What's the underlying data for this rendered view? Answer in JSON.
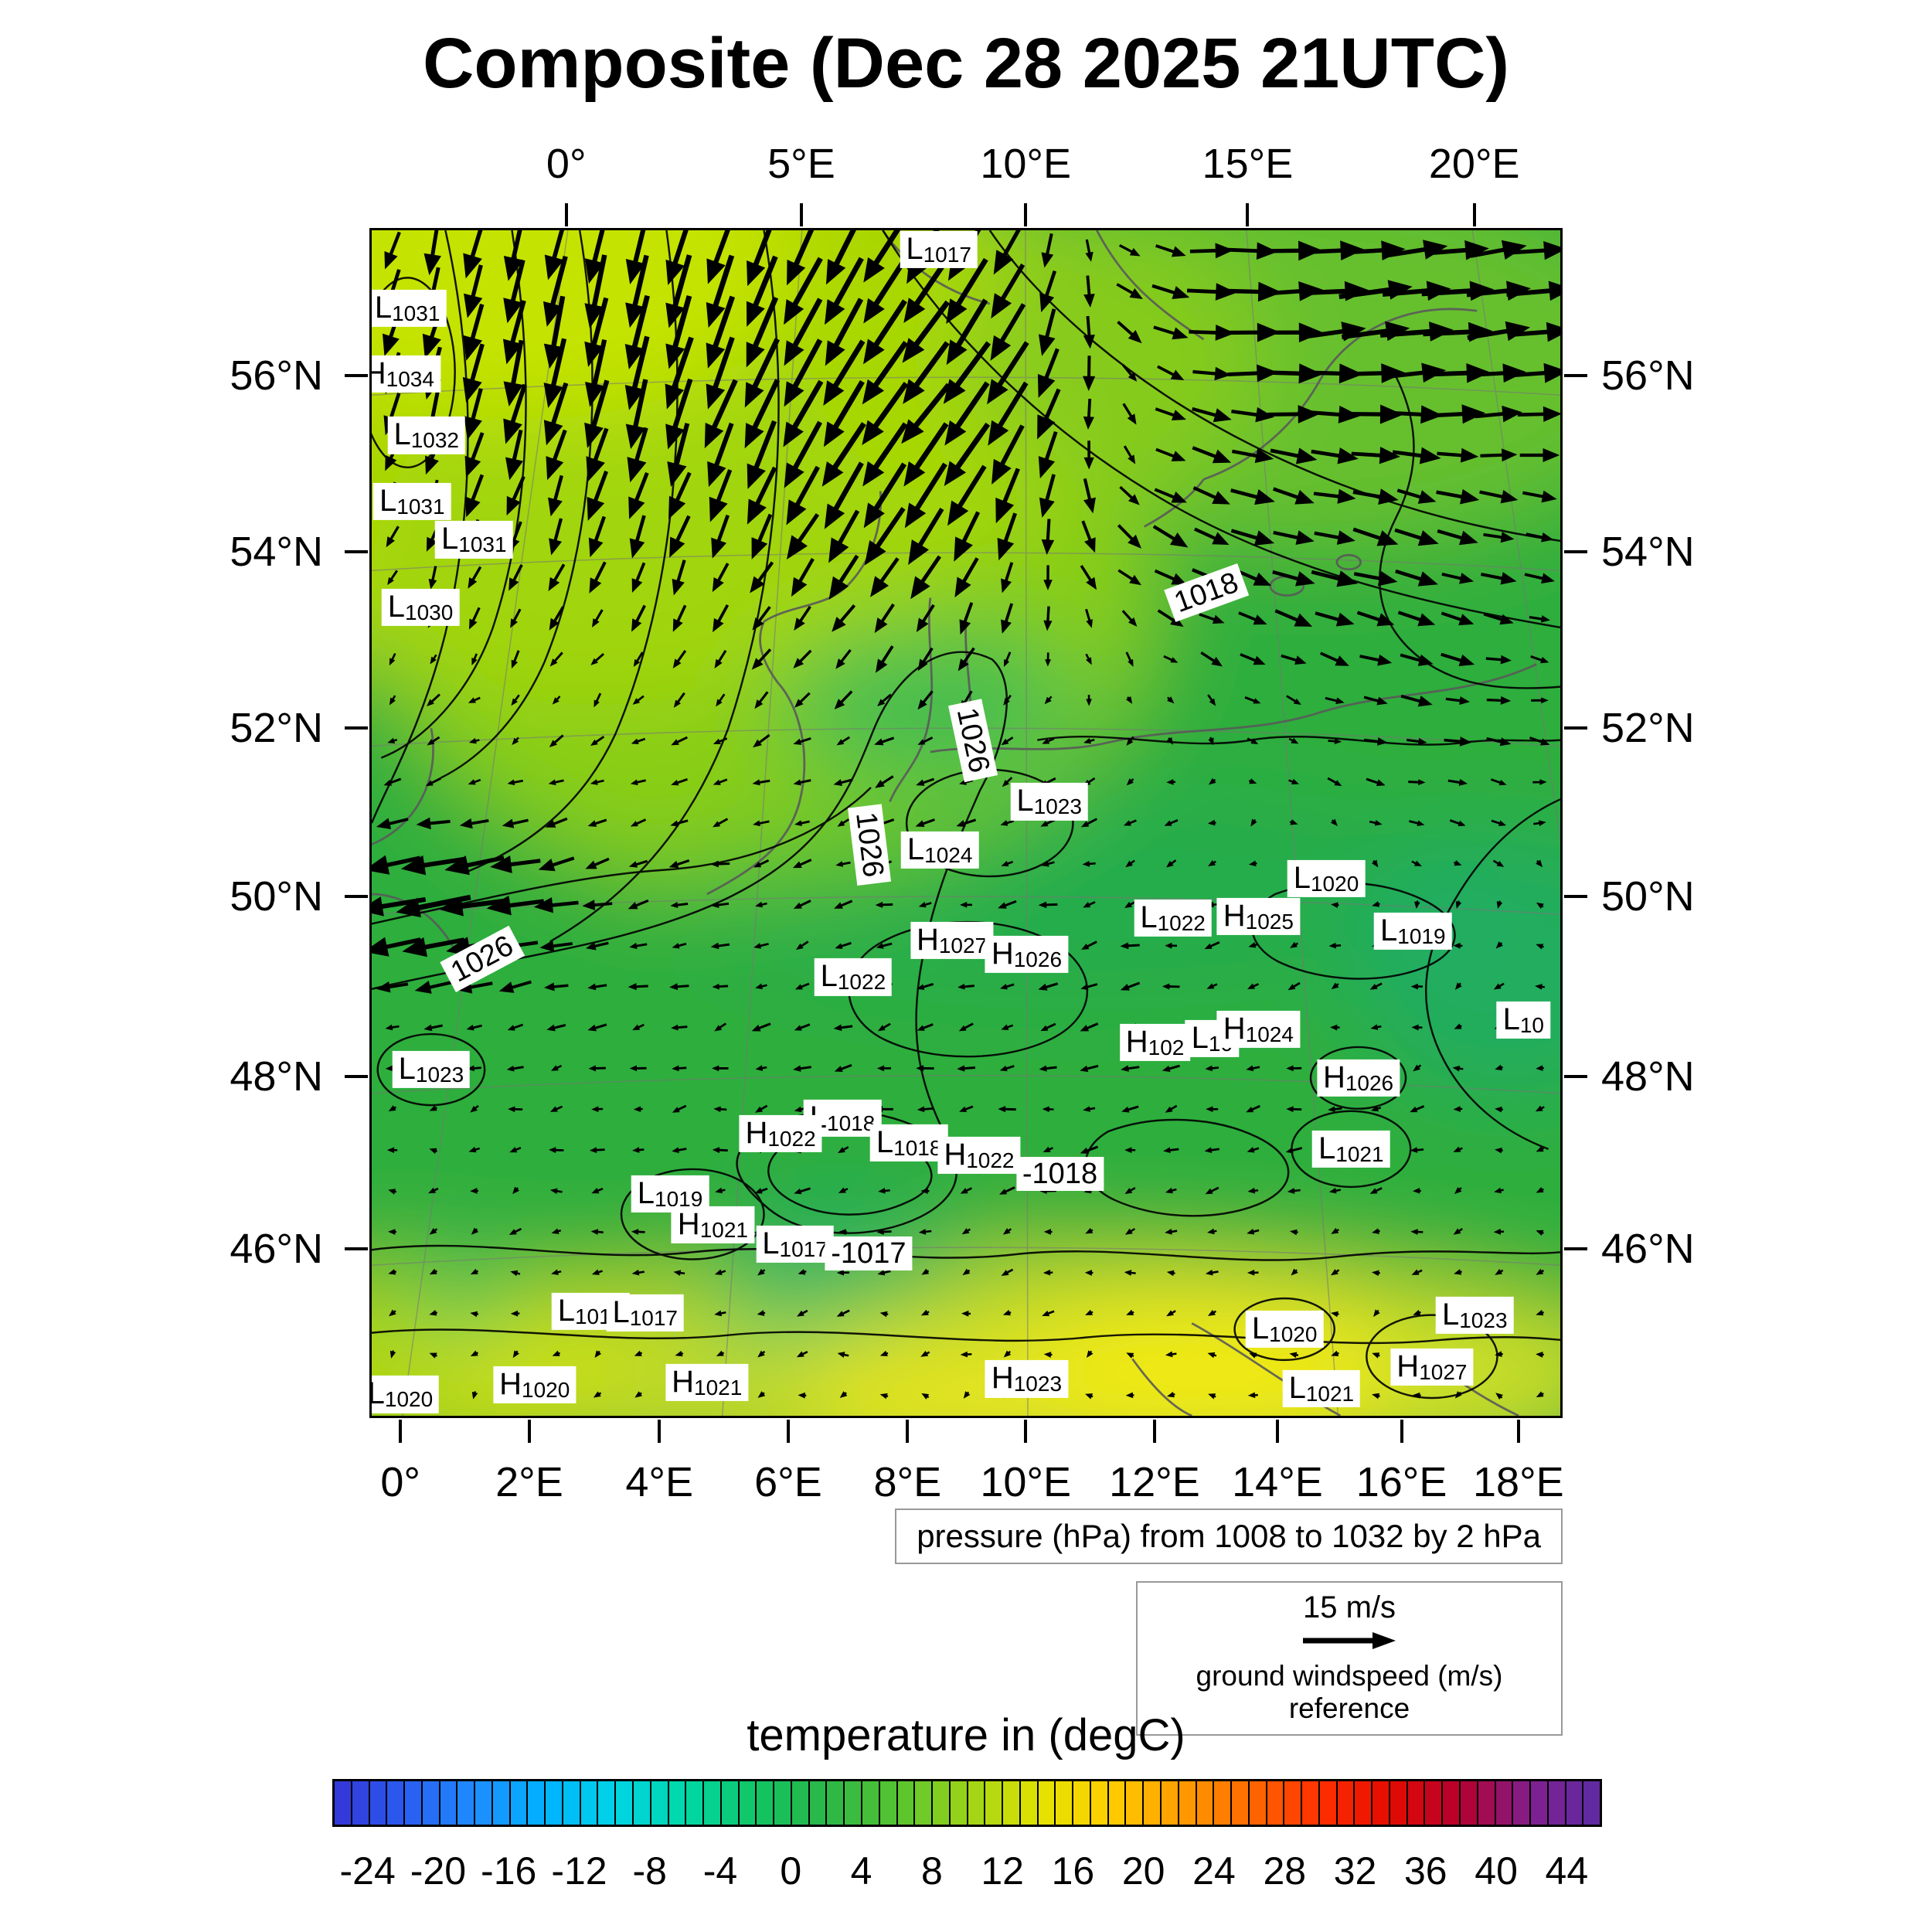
{
  "title": "Composite (Dec 28 2025 21UTC)",
  "pressure_caption": "pressure (hPa) from 1008 to 1032 by 2 hPa",
  "wind_legend": {
    "speed": "15 m/s",
    "caption": "ground windspeed (m/s) reference"
  },
  "colorbar_title": "temperature in (degC)",
  "chart_data": {
    "type": "heatmap",
    "title": "Composite (Dec 28 2025 21UTC)",
    "axes": {
      "top_lon_ticks": {
        "labels": [
          "0°",
          "5°E",
          "10°E",
          "15°E",
          "20°E"
        ],
        "fracs": [
          0.165,
          0.362,
          0.55,
          0.736,
          0.926
        ]
      },
      "bottom_lon_ticks": {
        "labels": [
          "0°",
          "2°E",
          "4°E",
          "6°E",
          "8°E",
          "10°E",
          "12°E",
          "14°E",
          "16°E",
          "18°E"
        ],
        "fracs": [
          0.026,
          0.134,
          0.243,
          0.351,
          0.451,
          0.55,
          0.658,
          0.761,
          0.865,
          0.963
        ]
      },
      "lat_ticks": {
        "labels": [
          "56°N",
          "54°N",
          "52°N",
          "50°N",
          "48°N",
          "46°N"
        ],
        "fracs": [
          0.124,
          0.272,
          0.42,
          0.562,
          0.713,
          0.858
        ]
      }
    },
    "pressure": {
      "units": "hPa",
      "min": 1008,
      "max": 1032,
      "interval": 2,
      "centers": [
        {
          "t": "L",
          "v": "1031",
          "x": 3.0,
          "y": 6.6
        },
        {
          "t": "H",
          "v": "1034",
          "x": 2.3,
          "y": 12.1
        },
        {
          "t": "L",
          "v": "1032",
          "x": 4.6,
          "y": 17.3
        },
        {
          "t": "L",
          "v": "1031",
          "x": 3.4,
          "y": 22.9
        },
        {
          "t": "L",
          "v": "1031",
          "x": 8.6,
          "y": 26.1
        },
        {
          "t": "L",
          "v": "1030",
          "x": 4.1,
          "y": 31.8
        },
        {
          "t": "L",
          "v": "1017",
          "x": 47.7,
          "y": 1.6
        },
        {
          "t": "L",
          "v": "1023",
          "x": 57.0,
          "y": 48.2
        },
        {
          "t": "L",
          "v": "1024",
          "x": 47.8,
          "y": 52.3
        },
        {
          "t": "L",
          "v": "1020",
          "x": 80.3,
          "y": 54.7
        },
        {
          "t": "L",
          "v": "1022",
          "x": 67.4,
          "y": 58.0
        },
        {
          "t": "H",
          "v": "1025",
          "x": 74.6,
          "y": 57.9
        },
        {
          "t": "L",
          "v": "1019",
          "x": 87.6,
          "y": 59.1
        },
        {
          "t": "H",
          "v": "1027",
          "x": 48.8,
          "y": 59.9
        },
        {
          "t": "H",
          "v": "1026",
          "x": 55.1,
          "y": 61.1
        },
        {
          "t": "L",
          "v": "1022",
          "x": 40.5,
          "y": 63.0
        },
        {
          "t": "H",
          "v": "102",
          "x": 65.9,
          "y": 68.5
        },
        {
          "t": "L",
          "v": "10",
          "x": 70.7,
          "y": 68.2
        },
        {
          "t": "H",
          "v": "1024",
          "x": 74.6,
          "y": 67.4
        },
        {
          "t": "L",
          "v": "10",
          "x": 96.9,
          "y": 66.6
        },
        {
          "t": "L",
          "v": "1023",
          "x": 5.0,
          "y": 70.8
        },
        {
          "t": "H",
          "v": "1026",
          "x": 83.0,
          "y": 71.5
        },
        {
          "t": "L",
          "v": "1018",
          "x": 39.6,
          "y": 74.9
        },
        {
          "t": "H",
          "v": "1022",
          "x": 34.4,
          "y": 76.2
        },
        {
          "t": "L",
          "v": "1018",
          "x": 45.2,
          "y": 77.0
        },
        {
          "t": "H",
          "v": "1022",
          "x": 51.1,
          "y": 78.0
        },
        {
          "t": "L",
          "v": "1021",
          "x": 82.4,
          "y": 77.5
        },
        {
          "t": "L",
          "v": "1019",
          "x": 25.1,
          "y": 81.3
        },
        {
          "t": "H",
          "v": "1021",
          "x": 28.7,
          "y": 83.9
        },
        {
          "t": "L",
          "v": "1017",
          "x": 35.6,
          "y": 85.5
        },
        {
          "t": "L",
          "v": "1018",
          "x": 18.4,
          "y": 91.2
        },
        {
          "t": "L",
          "v": "1017",
          "x": 23.0,
          "y": 91.3
        },
        {
          "t": "L",
          "v": "1023",
          "x": 92.8,
          "y": 91.5
        },
        {
          "t": "L",
          "v": "1020",
          "x": 76.8,
          "y": 92.7
        },
        {
          "t": "L",
          "v": "1020",
          "x": 2.4,
          "y": 98.2
        },
        {
          "t": "H",
          "v": "1020",
          "x": 13.7,
          "y": 97.4
        },
        {
          "t": "H",
          "v": "1021",
          "x": 28.2,
          "y": 97.2
        },
        {
          "t": "H",
          "v": "1023",
          "x": 55.1,
          "y": 96.9
        },
        {
          "t": "L",
          "v": "1021",
          "x": 79.9,
          "y": 97.7
        },
        {
          "t": "H",
          "v": "1027",
          "x": 89.2,
          "y": 95.9
        }
      ],
      "contour_inline_labels": [
        {
          "text": "1018",
          "x": 70.2,
          "y": 30.6,
          "rot": -20
        },
        {
          "text": "1026",
          "x": 50.6,
          "y": 43.0,
          "rot": 78
        },
        {
          "text": "1026",
          "x": 41.9,
          "y": 51.8,
          "rot": 83
        },
        {
          "text": "1026",
          "x": 9.3,
          "y": 61.5,
          "rot": -28
        },
        {
          "text": "-1018",
          "x": 57.9,
          "y": 79.6,
          "rot": 0
        },
        {
          "text": "-1017",
          "x": 41.8,
          "y": 86.3,
          "rot": 0
        }
      ]
    },
    "wind": {
      "reference_speed": "15 m/s",
      "field_regions": [
        {
          "region": "northwest (North Sea)",
          "direction": "southward to southwestward",
          "speed_ms": 12
        },
        {
          "region": "northeast (Baltic)",
          "direction": "eastward",
          "speed_ms": 12
        },
        {
          "region": "west (Channel, ~50N)",
          "direction": "westward",
          "speed_ms": 10
        },
        {
          "region": "central Europe",
          "direction": "weak westerly",
          "speed_ms": 3
        },
        {
          "region": "south (Alps, ~45-46N)",
          "direction": "weak variable",
          "speed_ms": 2
        }
      ]
    },
    "temperature": {
      "units": "degC",
      "colorbar_tick_labels": [
        "-24",
        "-20",
        "-16",
        "-12",
        "-8",
        "-4",
        "0",
        "4",
        "8",
        "12",
        "16",
        "20",
        "24",
        "28",
        "32",
        "36",
        "40",
        "44"
      ],
      "colorbar_range": [
        -26,
        46
      ],
      "colorbar_stops": [
        [
          -26,
          "#3535d6"
        ],
        [
          -22,
          "#2a5cf0"
        ],
        [
          -18,
          "#1e8cff"
        ],
        [
          -14,
          "#00b2ff"
        ],
        [
          -10,
          "#00d4e6"
        ],
        [
          -6,
          "#00d9a8"
        ],
        [
          -2,
          "#12c463"
        ],
        [
          2,
          "#2bb648"
        ],
        [
          6,
          "#55c430"
        ],
        [
          10,
          "#9cd418"
        ],
        [
          14,
          "#e2e300"
        ],
        [
          18,
          "#ffcf00"
        ],
        [
          22,
          "#ff9e00"
        ],
        [
          26,
          "#ff6a00"
        ],
        [
          30,
          "#ff3000"
        ],
        [
          34,
          "#e30b00"
        ],
        [
          38,
          "#b5002e"
        ],
        [
          42,
          "#801f8e"
        ],
        [
          46,
          "#5d2ba2"
        ]
      ],
      "field_estimates": [
        {
          "region": "northwest North Sea area",
          "approx_degC": 9
        },
        {
          "region": "central and eastern Europe",
          "approx_degC": 4
        },
        {
          "region": "Baltic coast",
          "approx_degC": 5
        },
        {
          "region": "Alpine band",
          "approx_degC": 0
        },
        {
          "region": "Po valley / Adriatic (south edge)",
          "approx_degC": 12
        }
      ]
    }
  }
}
